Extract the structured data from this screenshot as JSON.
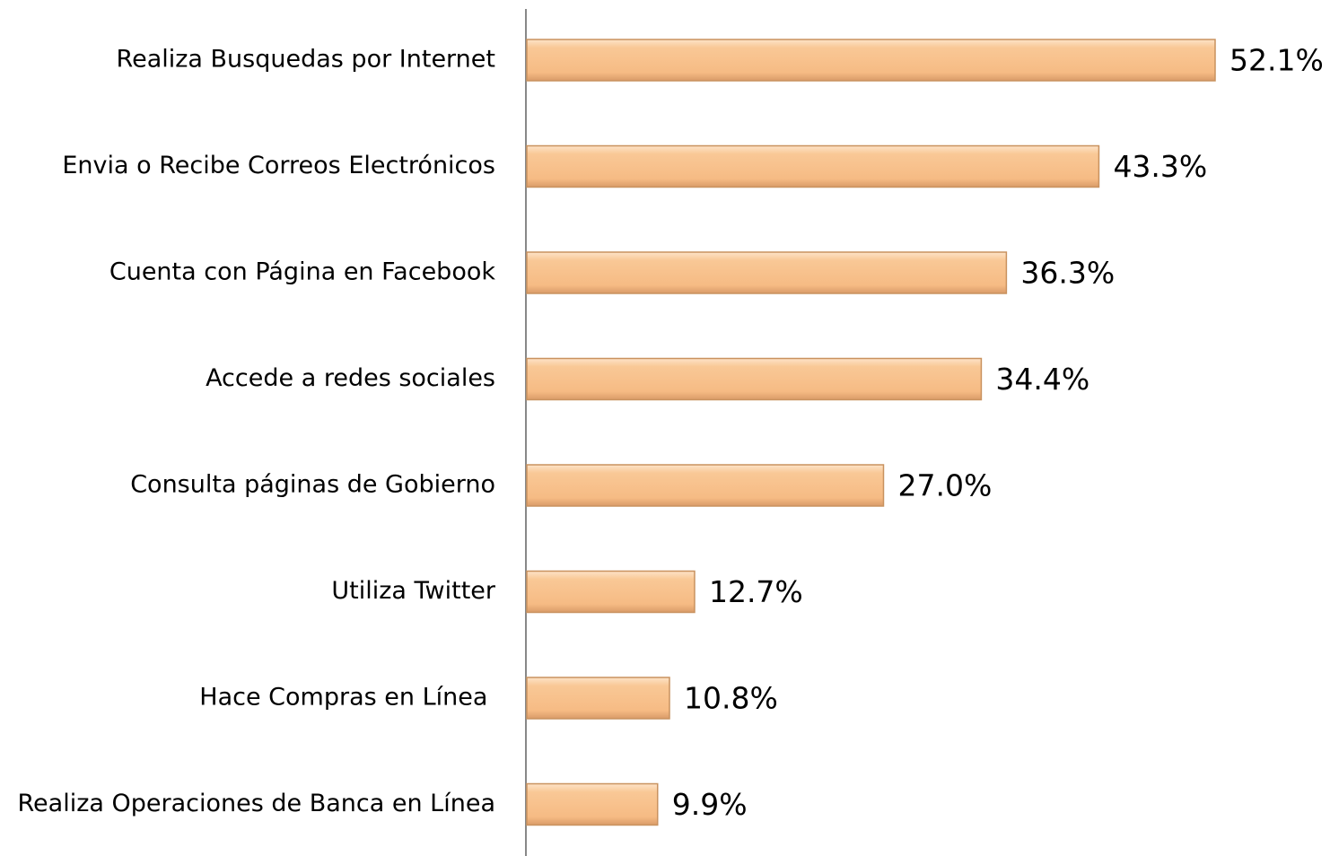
{
  "chart_data": {
    "type": "hbar",
    "categories": [
      "Realiza Busquedas por Internet",
      "Envia o Recibe Correos Electrónicos",
      "Cuenta con Página en Facebook",
      "Accede a redes sociales",
      "Consulta páginas de Gobierno",
      "Utiliza Twitter",
      "Hace Compras en Línea ",
      "Realiza Operaciones de Banca en Línea"
    ],
    "values": [
      52.1,
      43.3,
      36.3,
      34.4,
      27.0,
      12.7,
      10.8,
      9.9
    ],
    "value_labels": [
      "52.1%",
      "43.3%",
      "36.3%",
      "34.4%",
      "27.0%",
      "12.7%",
      "10.8%",
      "9.9%"
    ],
    "color": "#f8c08a"
  }
}
